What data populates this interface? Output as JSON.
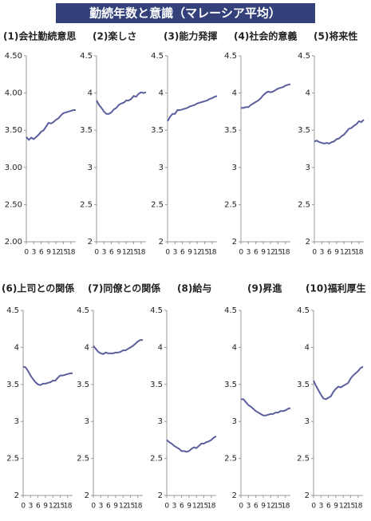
{
  "title": "勤続年数と意識（マレーシア平均）",
  "chart_data": [
    {
      "type": "line",
      "title": "(1)会社勤続意思",
      "color": "#5b5f9e",
      "x": [
        0,
        1,
        2,
        3,
        4,
        5,
        6,
        7,
        8,
        9,
        10,
        11,
        12,
        13,
        14,
        15,
        16,
        17,
        18,
        19,
        20
      ],
      "values": [
        3.41,
        3.37,
        3.4,
        3.38,
        3.41,
        3.44,
        3.48,
        3.5,
        3.55,
        3.6,
        3.59,
        3.61,
        3.64,
        3.66,
        3.7,
        3.73,
        3.74,
        3.75,
        3.76,
        3.77,
        3.77
      ],
      "xlim": [
        0,
        20
      ],
      "xticks": [
        0,
        3,
        6,
        9,
        12,
        15,
        18
      ],
      "ylim": [
        2,
        4.5
      ],
      "yticks": [
        {
          "value": 2,
          "label": "2.00"
        },
        {
          "value": 2.5,
          "label": "2.50"
        },
        {
          "value": 3,
          "label": "3.00"
        },
        {
          "value": 3.5,
          "label": "3.50"
        },
        {
          "value": 4,
          "label": "4.00"
        },
        {
          "value": 4.5,
          "label": "4.50"
        }
      ]
    },
    {
      "type": "line",
      "title": "(2)楽しさ",
      "color": "#5b5f9e",
      "x": [
        0,
        1,
        2,
        3,
        4,
        5,
        6,
        7,
        8,
        9,
        10,
        11,
        12,
        13,
        14,
        15,
        16,
        17,
        18,
        19,
        20
      ],
      "values": [
        3.9,
        3.84,
        3.8,
        3.75,
        3.72,
        3.72,
        3.74,
        3.78,
        3.8,
        3.84,
        3.86,
        3.87,
        3.9,
        3.9,
        3.92,
        3.96,
        3.95,
        3.99,
        4.01,
        4,
        4.01
      ],
      "xlim": [
        0,
        20
      ],
      "xticks": [
        0,
        3,
        6,
        9,
        12,
        15,
        18
      ],
      "ylim": [
        2,
        4.5
      ],
      "yticks": [
        2,
        2.5,
        3,
        3.5,
        4,
        4.5
      ]
    },
    {
      "type": "line",
      "title": "(3)能力発揮",
      "color": "#5b5f9e",
      "x": [
        0,
        1,
        2,
        3,
        4,
        5,
        6,
        7,
        8,
        9,
        10,
        11,
        12,
        13,
        14,
        15,
        16,
        17,
        18,
        19,
        20
      ],
      "values": [
        3.62,
        3.68,
        3.72,
        3.72,
        3.77,
        3.77,
        3.78,
        3.79,
        3.8,
        3.82,
        3.83,
        3.84,
        3.86,
        3.87,
        3.88,
        3.89,
        3.9,
        3.92,
        3.93,
        3.95,
        3.96
      ],
      "xlim": [
        0,
        20
      ],
      "xticks": [
        0,
        3,
        6,
        9,
        12,
        15,
        18
      ],
      "ylim": [
        2,
        4.5
      ],
      "yticks": [
        2,
        2.5,
        3,
        3.5,
        4,
        4.5
      ]
    },
    {
      "type": "line",
      "title": "(4)社会的意義",
      "color": "#5b5f9e",
      "x": [
        0,
        1,
        2,
        3,
        4,
        5,
        6,
        7,
        8,
        9,
        10,
        11,
        12,
        13,
        14,
        15,
        16,
        17,
        18,
        19,
        20
      ],
      "values": [
        3.8,
        3.8,
        3.81,
        3.81,
        3.84,
        3.86,
        3.88,
        3.9,
        3.93,
        3.97,
        4,
        4.02,
        4.01,
        4.02,
        4.04,
        4.06,
        4.07,
        4.08,
        4.1,
        4.11,
        4.12
      ],
      "xlim": [
        0,
        20
      ],
      "xticks": [
        0,
        3,
        6,
        9,
        12,
        15,
        18
      ],
      "ylim": [
        2,
        4.5
      ],
      "yticks": [
        2,
        2.5,
        3,
        3.5,
        4,
        4.5
      ]
    },
    {
      "type": "line",
      "title": "(5)将来性",
      "color": "#5b5f9e",
      "x": [
        0,
        1,
        2,
        3,
        4,
        5,
        6,
        7,
        8,
        9,
        10,
        11,
        12,
        13,
        14,
        15,
        16,
        17,
        18,
        19,
        20
      ],
      "values": [
        3.35,
        3.36,
        3.34,
        3.33,
        3.32,
        3.33,
        3.32,
        3.34,
        3.35,
        3.38,
        3.39,
        3.42,
        3.44,
        3.48,
        3.52,
        3.53,
        3.56,
        3.58,
        3.62,
        3.61,
        3.64
      ],
      "xlim": [
        0,
        20
      ],
      "xticks": [
        0,
        3,
        6,
        9,
        12,
        15,
        18
      ],
      "ylim": [
        2,
        4.5
      ],
      "yticks": [
        2,
        2.5,
        3,
        3.5,
        4,
        4.5
      ]
    },
    {
      "type": "line",
      "title": "(6)上司との関係",
      "color": "#5b5f9e",
      "x": [
        0,
        1,
        2,
        3,
        4,
        5,
        6,
        7,
        8,
        9,
        10,
        11,
        12,
        13,
        14,
        15,
        16,
        17,
        18,
        19,
        20
      ],
      "values": [
        3.74,
        3.73,
        3.68,
        3.62,
        3.57,
        3.53,
        3.5,
        3.49,
        3.51,
        3.51,
        3.52,
        3.53,
        3.55,
        3.55,
        3.59,
        3.62,
        3.62,
        3.63,
        3.64,
        3.65,
        3.65
      ],
      "xlim": [
        0,
        20
      ],
      "xticks": [
        0,
        3,
        6,
        9,
        12,
        15,
        18
      ],
      "ylim": [
        2,
        4.5
      ],
      "yticks": [
        2,
        2.5,
        3,
        3.5,
        4,
        4.5
      ]
    },
    {
      "type": "line",
      "title": "(7)同僚との関係",
      "color": "#5b5f9e",
      "x": [
        0,
        1,
        2,
        3,
        4,
        5,
        6,
        7,
        8,
        9,
        10,
        11,
        12,
        13,
        14,
        15,
        16,
        17,
        18,
        19,
        20
      ],
      "values": [
        4.02,
        3.98,
        3.94,
        3.92,
        3.91,
        3.93,
        3.92,
        3.92,
        3.92,
        3.93,
        3.93,
        3.94,
        3.96,
        3.96,
        3.98,
        4,
        4.02,
        4.05,
        4.08,
        4.1,
        4.1
      ],
      "xlim": [
        0,
        20
      ],
      "xticks": [
        0,
        3,
        6,
        9,
        12,
        15,
        18
      ],
      "ylim": [
        2,
        4.5
      ],
      "yticks": [
        2,
        2.5,
        3,
        3.5,
        4,
        4.5
      ]
    },
    {
      "type": "line",
      "title": "(8)給与",
      "color": "#5b5f9e",
      "x": [
        0,
        1,
        2,
        3,
        4,
        5,
        6,
        7,
        8,
        9,
        10,
        11,
        12,
        13,
        14,
        15,
        16,
        17,
        18,
        19,
        20
      ],
      "values": [
        2.75,
        2.72,
        2.7,
        2.67,
        2.65,
        2.63,
        2.6,
        2.6,
        2.59,
        2.6,
        2.63,
        2.65,
        2.64,
        2.67,
        2.7,
        2.7,
        2.72,
        2.73,
        2.75,
        2.78,
        2.8
      ],
      "xlim": [
        0,
        20
      ],
      "xticks": [
        0,
        3,
        6,
        9,
        12,
        15,
        18
      ],
      "ylim": [
        2,
        4.5
      ],
      "yticks": [
        2,
        2.5,
        3,
        3.5,
        4,
        4.5
      ]
    },
    {
      "type": "line",
      "title": "(9)昇進",
      "color": "#5b5f9e",
      "x": [
        0,
        1,
        2,
        3,
        4,
        5,
        6,
        7,
        8,
        9,
        10,
        11,
        12,
        13,
        14,
        15,
        16,
        17,
        18,
        19,
        20
      ],
      "values": [
        3.3,
        3.3,
        3.26,
        3.22,
        3.2,
        3.17,
        3.14,
        3.12,
        3.1,
        3.08,
        3.08,
        3.09,
        3.1,
        3.1,
        3.12,
        3.12,
        3.14,
        3.14,
        3.15,
        3.17,
        3.18
      ],
      "xlim": [
        0,
        20
      ],
      "xticks": [
        0,
        3,
        6,
        9,
        12,
        15,
        18
      ],
      "ylim": [
        2,
        4.5
      ],
      "yticks": [
        2,
        2.5,
        3,
        3.5,
        4,
        4.5
      ]
    },
    {
      "type": "line",
      "title": "(10)福利厚生",
      "color": "#5b5f9e",
      "x": [
        0,
        1,
        2,
        3,
        4,
        5,
        6,
        7,
        8,
        9,
        10,
        11,
        12,
        13,
        14,
        15,
        16,
        17,
        18,
        19,
        20
      ],
      "values": [
        3.55,
        3.48,
        3.42,
        3.36,
        3.31,
        3.3,
        3.32,
        3.34,
        3.4,
        3.44,
        3.47,
        3.46,
        3.48,
        3.5,
        3.52,
        3.58,
        3.62,
        3.65,
        3.68,
        3.72,
        3.74
      ],
      "xlim": [
        0,
        20
      ],
      "xticks": [
        0,
        3,
        6,
        9,
        12,
        15,
        18
      ],
      "ylim": [
        2,
        4.5
      ],
      "yticks": [
        2,
        2.5,
        3,
        3.5,
        4,
        4.5
      ]
    }
  ]
}
